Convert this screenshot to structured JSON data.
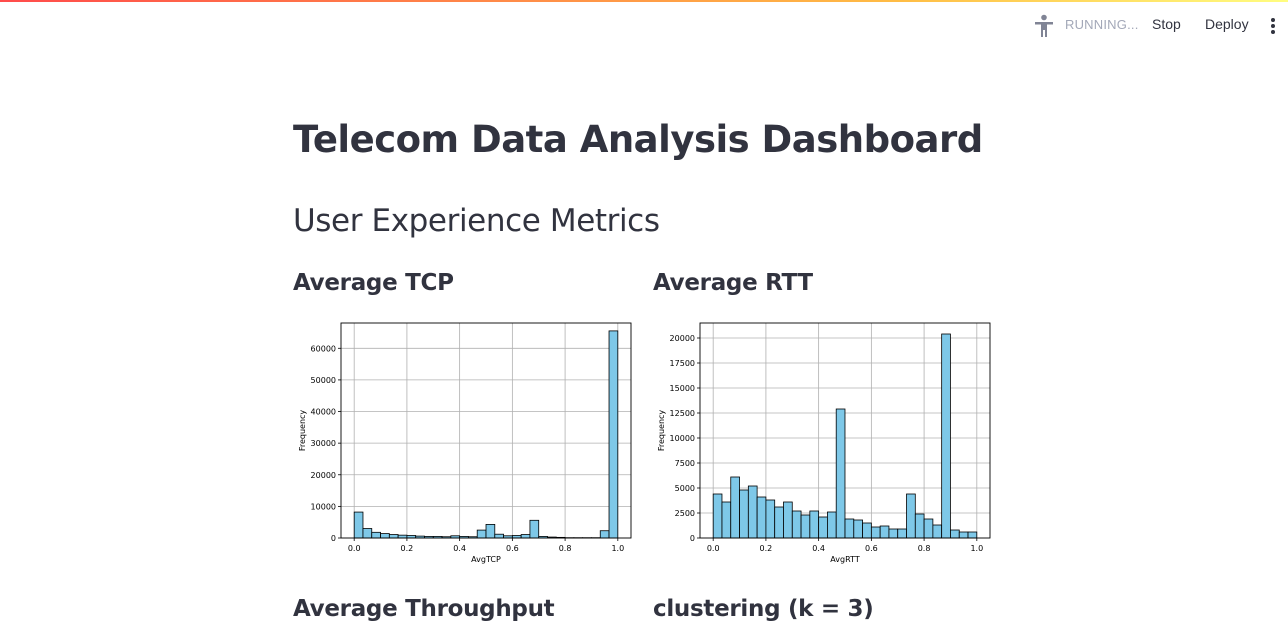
{
  "header": {
    "status": "RUNNING...",
    "stop_label": "Stop",
    "deploy_label": "Deploy",
    "icons": {
      "status": "running-figure-icon",
      "menu": "vertical-dots-icon"
    }
  },
  "page": {
    "title": "Telecom Data Analysis Dashboard",
    "section": "User Experience Metrics",
    "subheaders": [
      "Average TCP",
      "Average RTT",
      "Average Throughput",
      "clustering (k = 3)"
    ]
  },
  "colors": {
    "bar_fill": "#7ec8e8",
    "bar_edge": "#000000",
    "grid": "#b0b0b0",
    "accent_gradient": [
      "#ff4b4b",
      "#ffbd45",
      "#fffd80"
    ]
  },
  "chart_data": [
    {
      "type": "bar",
      "title": "",
      "xlabel": "AvgTCP",
      "ylabel": "Frequency",
      "xlim": [
        -0.05,
        1.05
      ],
      "ylim": [
        0,
        68000
      ],
      "xticks": [
        0.0,
        0.2,
        0.4,
        0.6,
        0.8,
        1.0
      ],
      "yticks": [
        0,
        10000,
        20000,
        30000,
        40000,
        50000,
        60000
      ],
      "bin_width": 0.0333,
      "grid": true,
      "x": [
        0.0167,
        0.05,
        0.0833,
        0.1167,
        0.15,
        0.1833,
        0.2167,
        0.25,
        0.2833,
        0.3167,
        0.35,
        0.3833,
        0.4167,
        0.45,
        0.4833,
        0.5167,
        0.55,
        0.5833,
        0.6167,
        0.65,
        0.6833,
        0.7167,
        0.75,
        0.7833,
        0.8167,
        0.85,
        0.8833,
        0.9167,
        0.95,
        0.9833
      ],
      "values": [
        8200,
        3000,
        1800,
        1400,
        1100,
        900,
        800,
        600,
        500,
        500,
        400,
        700,
        500,
        400,
        2500,
        4300,
        1200,
        700,
        800,
        1100,
        5600,
        500,
        300,
        200,
        100,
        100,
        100,
        100,
        2300,
        65500
      ]
    },
    {
      "type": "bar",
      "title": "",
      "xlabel": "AvgRTT",
      "ylabel": "Frequency",
      "xlim": [
        -0.05,
        1.05
      ],
      "ylim": [
        0,
        21500
      ],
      "xticks": [
        0.0,
        0.2,
        0.4,
        0.6,
        0.8,
        1.0
      ],
      "yticks": [
        0,
        2500,
        5000,
        7500,
        10000,
        12500,
        15000,
        17500,
        20000
      ],
      "bin_width": 0.0333,
      "grid": true,
      "x": [
        0.0167,
        0.05,
        0.0833,
        0.1167,
        0.15,
        0.1833,
        0.2167,
        0.25,
        0.2833,
        0.3167,
        0.35,
        0.3833,
        0.4167,
        0.45,
        0.4833,
        0.5167,
        0.55,
        0.5833,
        0.6167,
        0.65,
        0.6833,
        0.7167,
        0.75,
        0.7833,
        0.8167,
        0.85,
        0.8833,
        0.9167,
        0.95,
        0.9833
      ],
      "values": [
        4400,
        3600,
        6100,
        4800,
        5200,
        4100,
        3800,
        3100,
        3600,
        2700,
        2300,
        2700,
        2100,
        2600,
        12900,
        1900,
        1800,
        1500,
        1100,
        1200,
        900,
        900,
        4400,
        2400,
        1900,
        1300,
        20400,
        800,
        600,
        600
      ]
    }
  ]
}
